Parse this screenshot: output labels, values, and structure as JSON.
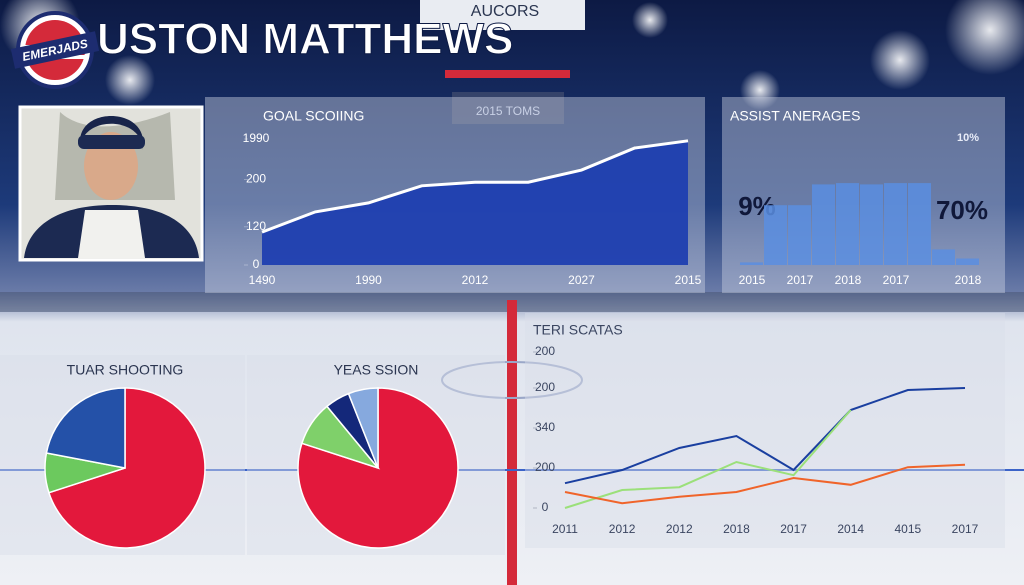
{
  "header": {
    "logo": "EMERJADS",
    "title": "USTON MATTHEWS"
  },
  "arena": {
    "banner": "AUCORS",
    "scoreboard": "2015 TOMS"
  },
  "chart_data": [
    {
      "type": "area",
      "title": "GOAL SCOIING",
      "color": "#1f3fb0",
      "categories": [
        "1490",
        null,
        "1990",
        null,
        "2012",
        null,
        "2027",
        null,
        "2015"
      ],
      "values": [
        73,
        118,
        138,
        176,
        184,
        184,
        211,
        260,
        276
      ],
      "ylim": [
        0,
        300
      ],
      "yticks": [
        0,
        {
          "value": 85,
          "label": "120"
        },
        {
          "value": 190,
          "label": "200"
        },
        {
          "value": 280,
          "label": "1990"
        }
      ]
    },
    {
      "type": "bar",
      "title": "ASSIST ANERAGES",
      "color": "#5b8ee0",
      "categories": [
        "2015",
        null,
        "2017",
        null,
        "2018",
        null,
        "2017",
        null,
        null,
        "2018"
      ],
      "values": [
        2,
        46,
        46,
        62,
        63,
        62,
        63,
        63,
        12,
        5
      ],
      "ylim": [
        0,
        100
      ],
      "annotations": [
        "9%",
        "70%",
        "10%"
      ]
    },
    {
      "type": "pie",
      "title": "TUAR SHOOTING",
      "values": [
        70,
        8,
        22
      ],
      "colors": [
        "#e3183c",
        "#6cc95e",
        "#2451a8"
      ]
    },
    {
      "type": "pie",
      "title": "YEAS SSION",
      "values": [
        80,
        9,
        5,
        6
      ],
      "colors": [
        "#e3183c",
        "#7fd06a",
        "#14287a",
        "#86a9de"
      ]
    },
    {
      "type": "line",
      "title": "TERI SCATAS",
      "categories": [
        "2011",
        "2012",
        "2012",
        "2018",
        "2017",
        "2014",
        "4015",
        "2017"
      ],
      "ylim": [
        0,
        400
      ],
      "yticks": [
        0,
        {
          "value": 100,
          "label": "200"
        },
        {
          "value": 200,
          "label": "340"
        },
        {
          "value": 300,
          "label": "200"
        },
        {
          "value": 390,
          "label": "200"
        }
      ],
      "series": [
        {
          "color": "#1a3fa0",
          "values": [
            62,
            95,
            150,
            180,
            95,
            245,
            295,
            300
          ]
        },
        {
          "color": "#9be07a",
          "values": [
            0,
            45,
            52,
            115,
            82,
            245,
            null,
            null
          ]
        },
        {
          "color": "#f0642a",
          "values": [
            40,
            12,
            28,
            40,
            75,
            58,
            102,
            108
          ]
        }
      ]
    }
  ]
}
